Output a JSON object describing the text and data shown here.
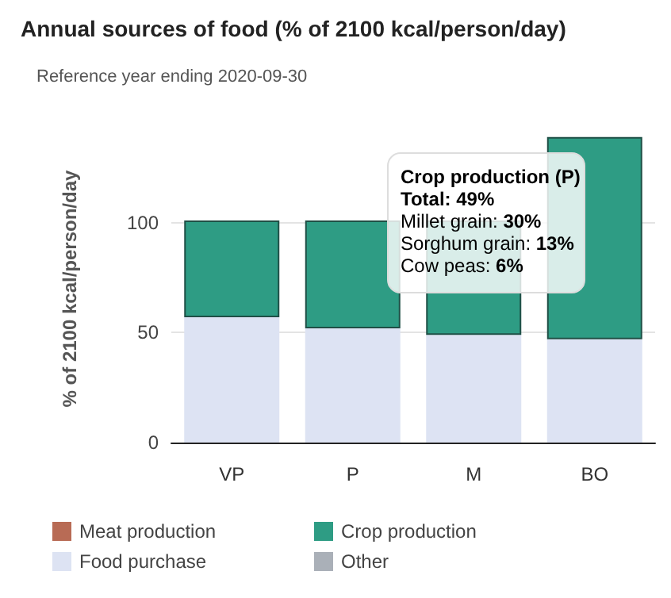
{
  "chart_data": {
    "type": "bar",
    "title": "Annual sources of food (% of 2100 kcal/person/day)",
    "subtitle": "Reference year ending 2020-09-30",
    "ylabel": "% of 2100 kcal/person/day",
    "categories": [
      "VP",
      "P",
      "M",
      "BO"
    ],
    "stacked": true,
    "series": [
      {
        "name": "Meat production",
        "color": "#b86b55",
        "values": [
          null,
          null,
          null,
          null
        ]
      },
      {
        "name": "Food purchase",
        "color": "#dde3f3",
        "values": [
          57,
          52,
          49,
          47
        ]
      },
      {
        "name": "Crop production",
        "color": "#2e9c84",
        "values": [
          44,
          49,
          52,
          92
        ]
      },
      {
        "name": "Other",
        "color": "#aab0b8",
        "values": [
          null,
          null,
          null,
          null
        ]
      }
    ],
    "ylim": [
      0,
      140
    ],
    "yticks": [
      0,
      50,
      100
    ],
    "grid": "y",
    "legend": "bottom",
    "annotations": [
      "Crop production (P)",
      "Total: 49%",
      "Millet grain: 30%",
      "Sorghum grain: 13%",
      "Cow peas: 6%"
    ]
  }
}
